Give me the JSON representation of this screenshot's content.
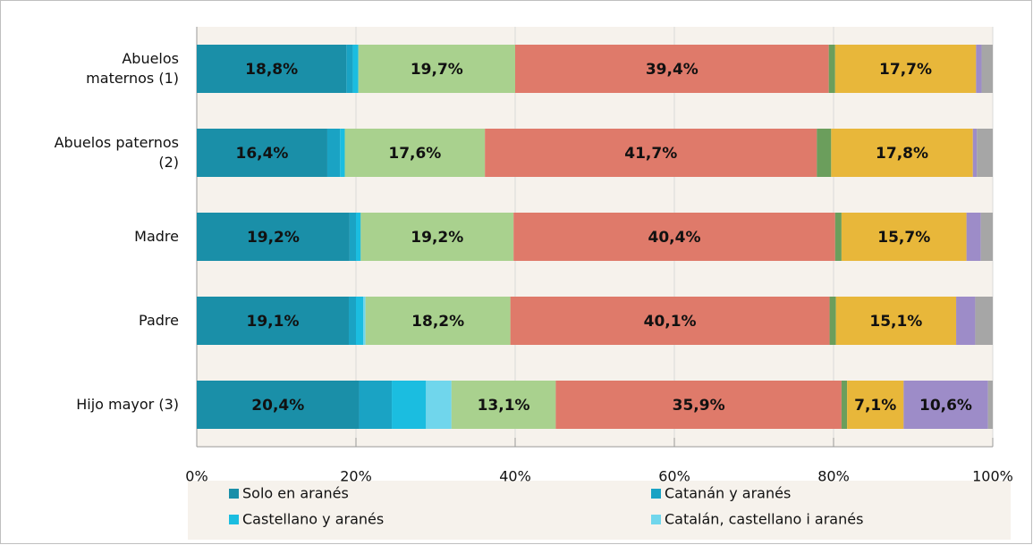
{
  "chart_data": {
    "type": "bar",
    "orientation": "horizontal",
    "stacked": true,
    "categories": [
      "Abuelos\nmaternos (1)",
      "Abuelos paternos\n(2)",
      "Madre",
      "Padre",
      "Hijo mayor (3)"
    ],
    "xlim": [
      0,
      100
    ],
    "xticks": [
      {
        "value": 0,
        "label": "0%"
      },
      {
        "value": 20,
        "label": "20%"
      },
      {
        "value": 40,
        "label": "40%"
      },
      {
        "value": 60,
        "label": "60%"
      },
      {
        "value": 80,
        "label": "80%"
      },
      {
        "value": 100,
        "label": "100%"
      }
    ],
    "grid": true,
    "legend": "bottom",
    "series": [
      {
        "name": "Solo en aranés",
        "color": "#1a8fa8",
        "values": [
          18.8,
          16.4,
          19.2,
          19.1,
          20.4
        ],
        "value_labels": [
          "18,8%",
          "16,4%",
          "19,2%",
          "19,1%",
          "20,4%"
        ]
      },
      {
        "name": "Catanán y aranés",
        "color": "#1aa3c4",
        "values": [
          0.8,
          1.6,
          0.8,
          0.9,
          4.1
        ]
      },
      {
        "name": "Castellano y aranés",
        "color": "#1bbde0",
        "values": [
          0.7,
          0.6,
          0.6,
          0.9,
          4.3
        ]
      },
      {
        "name": "Catalán, castellano i aranés",
        "color": "#70d6ec",
        "values": [
          0,
          0,
          0,
          0.3,
          3.2
        ]
      },
      {
        "color": "#a9d18e",
        "values": [
          19.7,
          17.6,
          19.2,
          18.2,
          13.1
        ],
        "value_labels": [
          "19,7%",
          "17,6%",
          "19,2%",
          "18,2%",
          "13,1%"
        ]
      },
      {
        "color": "#df7a6a",
        "values": [
          39.4,
          41.7,
          40.4,
          40.1,
          35.9
        ],
        "value_labels": [
          "39,4%",
          "41,7%",
          "40,4%",
          "40,1%",
          "35,9%"
        ]
      },
      {
        "color": "#6b9e5c",
        "values": [
          0.8,
          1.8,
          0.8,
          0.8,
          0.7
        ]
      },
      {
        "color": "#e8b73a",
        "values": [
          17.7,
          17.8,
          15.7,
          15.1,
          7.1
        ],
        "value_labels": [
          "17,7%",
          "17,8%",
          "15,7%",
          "15,1%",
          "7,1%"
        ]
      },
      {
        "color": "#9d8cc8",
        "values": [
          0.7,
          0.5,
          1.8,
          2.4,
          10.6
        ],
        "value_labels": [
          null,
          null,
          null,
          null,
          "10,6%"
        ]
      },
      {
        "color": "#a6a6a6",
        "values": [
          1.4,
          2.0,
          1.5,
          2.2,
          0.6
        ]
      }
    ]
  }
}
